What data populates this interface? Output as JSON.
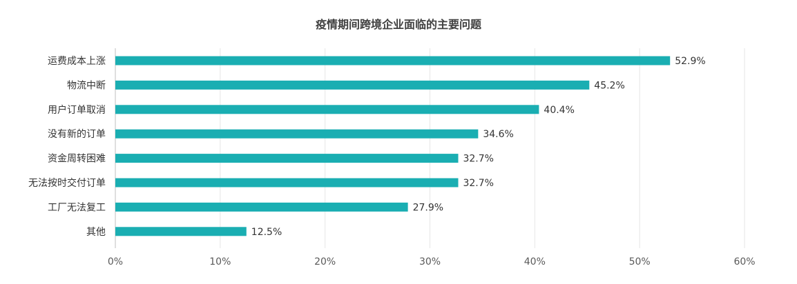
{
  "chart_data": {
    "type": "bar",
    "orientation": "horizontal",
    "title": "疫情期间跨境企业面临的主要问题",
    "categories": [
      "运费成本上涨",
      "物流中断",
      "用户订单取消",
      "没有新的订单",
      "资金周转困难",
      "无法按时交付订单",
      "工厂无法复工",
      "其他"
    ],
    "values": [
      52.9,
      45.2,
      40.4,
      34.6,
      32.7,
      32.7,
      27.9,
      12.5
    ],
    "value_labels": [
      "52.9%",
      "45.2%",
      "40.4%",
      "34.6%",
      "32.7%",
      "32.7%",
      "27.9%",
      "12.5%"
    ],
    "xlim": [
      0,
      60
    ],
    "xticks": [
      0,
      10,
      20,
      30,
      40,
      50,
      60
    ],
    "xtick_labels": [
      "0%",
      "10%",
      "20%",
      "30%",
      "40%",
      "50%",
      "60%"
    ],
    "grid": "vertical",
    "legend": "none",
    "bar_color": "#1aaeb2"
  }
}
